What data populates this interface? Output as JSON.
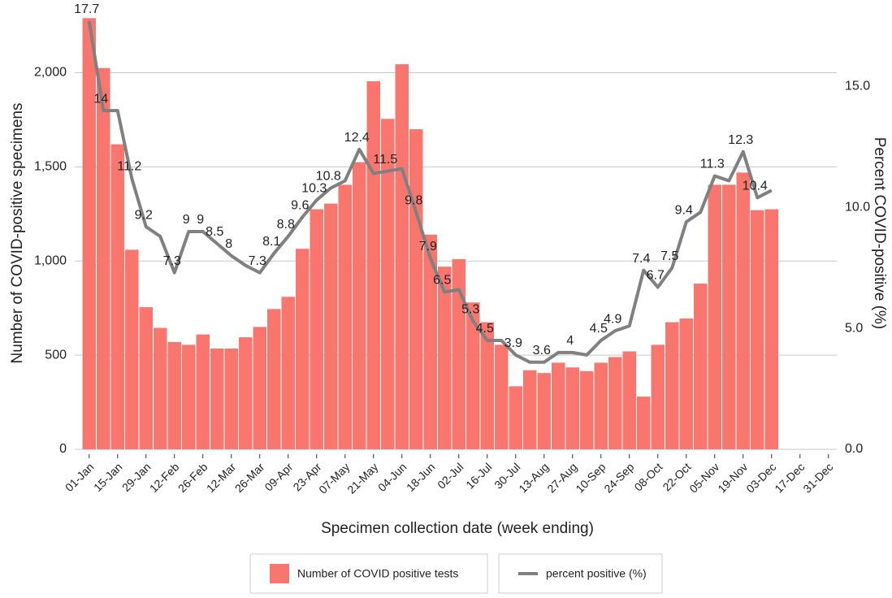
{
  "chart_data": {
    "type": "bar",
    "y_label": "Number of COVID-positive specimens",
    "y2_label": "Percent COVID-positive (%)",
    "x_label": "Specimen collection date (week ending)",
    "categories": [
      "01-Jan",
      null,
      "15-Jan",
      null,
      "29-Jan",
      null,
      "12-Feb",
      null,
      "26-Feb",
      null,
      "12-Mar",
      null,
      "26-Mar",
      null,
      "09-Apr",
      null,
      "23-Apr",
      null,
      "07-May",
      null,
      "21-May",
      null,
      "04-Jun",
      null,
      "18-Jun",
      null,
      "02-Jul",
      null,
      "16-Jul",
      null,
      "30-Jul",
      null,
      "13-Aug",
      null,
      "27-Aug",
      null,
      "10-Sep",
      null,
      "24-Sep",
      null,
      "08-Oct",
      null,
      "22-Oct",
      null,
      "05-Nov",
      null,
      "19-Nov",
      null,
      "03-Dec",
      null,
      "17-Dec",
      null,
      "31-Dec"
    ],
    "series": [
      {
        "name": "Number of COVID positive tests",
        "type": "bar",
        "color": "#f8766d",
        "values": [
          2290,
          2025,
          1620,
          1060,
          755,
          645,
          570,
          555,
          610,
          535,
          535,
          595,
          650,
          745,
          810,
          1065,
          1275,
          1305,
          1405,
          1525,
          1955,
          1755,
          2045,
          1700,
          1140,
          970,
          1010,
          780,
          675,
          555,
          335,
          420,
          405,
          460,
          435,
          415,
          460,
          490,
          520,
          280,
          555,
          675,
          695,
          880,
          1405,
          1405,
          1470,
          1270,
          1275,
          null,
          null,
          null,
          null
        ]
      },
      {
        "name": "percent positive (%)",
        "type": "line",
        "color": "#808080",
        "axis": "y2",
        "values": [
          17.7,
          14,
          14,
          11.2,
          9.2,
          8.8,
          7.3,
          9,
          9,
          8.5,
          8,
          7.6,
          7.3,
          8.1,
          8.8,
          9.6,
          10.3,
          10.8,
          11.1,
          12.4,
          11.4,
          11.5,
          11.6,
          9.8,
          7.9,
          6.5,
          6.6,
          5.3,
          4.5,
          4.5,
          3.9,
          3.6,
          3.6,
          4,
          4,
          3.9,
          4.5,
          4.9,
          5.1,
          7.4,
          6.7,
          7.5,
          9.4,
          9.8,
          11.3,
          11.1,
          12.3,
          10.4,
          10.7,
          null,
          null,
          null,
          null
        ],
        "value_labels": [
          "17.7",
          "14",
          null,
          "11.2",
          "9.2",
          null,
          "7.3",
          "9",
          "9",
          "8.5",
          "8",
          null,
          "7.3",
          "8.1",
          "8.8",
          "9.6",
          "10.3",
          "10.8",
          null,
          "12.4",
          null,
          "11.5",
          null,
          "9.8",
          "7.9",
          "6.5",
          null,
          "5.3",
          "4.5",
          null,
          "3.9",
          null,
          "3.6",
          null,
          "4",
          null,
          "4.5",
          "4.9",
          null,
          "7.4",
          "6.7",
          "7.5",
          "9.4",
          null,
          "11.3",
          null,
          "12.3",
          "10.4",
          null,
          null,
          null,
          null,
          null
        ]
      }
    ],
    "ylim": [
      0,
      2300
    ],
    "yticks": [
      0,
      500,
      {
        "value": 1000,
        "label": "1,000"
      },
      {
        "value": 1500,
        "label": "1,500"
      },
      {
        "value": 2000,
        "label": "2,000"
      }
    ],
    "y2lim": [
      0,
      17.9
    ],
    "y2ticks": [
      {
        "value": 0,
        "label": "0.0"
      },
      {
        "value": 5,
        "label": "5.0"
      },
      {
        "value": 10,
        "label": "10.0"
      },
      {
        "value": 15,
        "label": "15.0"
      }
    ],
    "grid": true,
    "legend": "bottom"
  }
}
